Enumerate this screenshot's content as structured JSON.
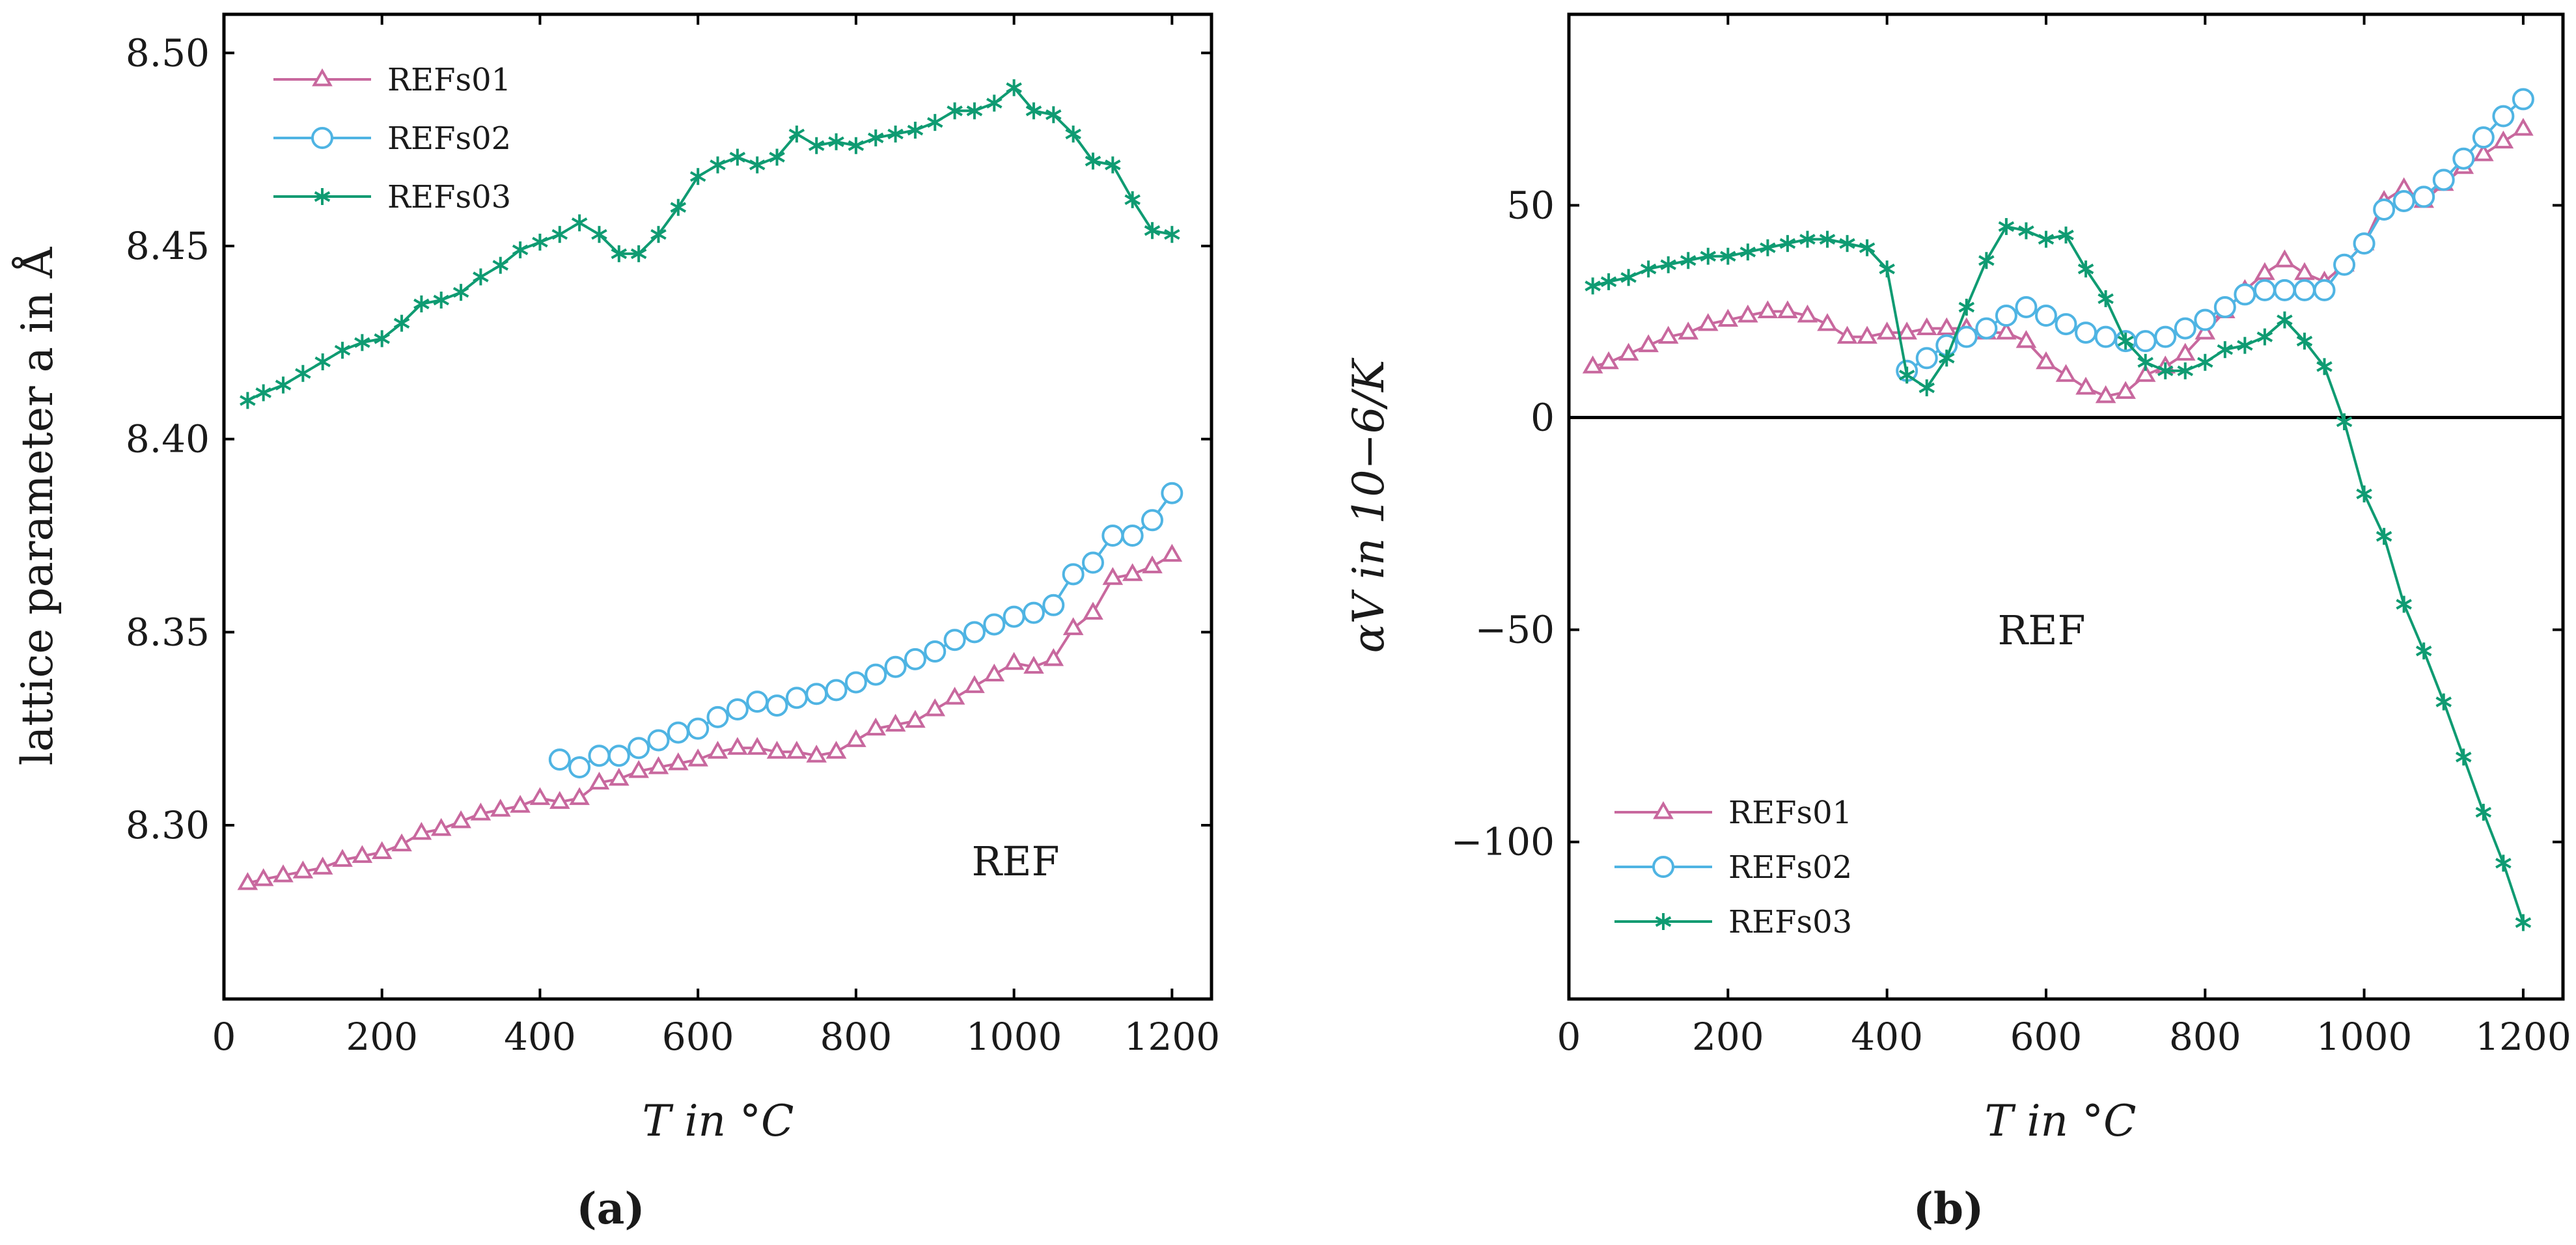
{
  "colors": {
    "REFs01": "#c8689e",
    "REFs02": "#4fb4e3",
    "REFs03": "#0f9b72"
  },
  "chart_data": [
    {
      "panel": "(a)",
      "type": "line",
      "xlabel": "T in °C",
      "ylabel": "lattice parameter a in Å",
      "xlim": [
        0,
        1250
      ],
      "ylim": [
        8.255,
        8.51
      ],
      "xticks": [
        0,
        200,
        400,
        600,
        800,
        1000,
        1200
      ],
      "yticks": [
        8.3,
        8.35,
        8.4,
        8.45,
        8.5
      ],
      "ytick_labels": [
        "8.30",
        "8.35",
        "8.40",
        "8.45",
        "8.50"
      ],
      "legend_position": "top-left",
      "annotation": "REF",
      "series": [
        {
          "name": "REFs01",
          "marker": "triangle",
          "x": [
            30,
            50,
            75,
            100,
            125,
            150,
            175,
            200,
            225,
            250,
            275,
            300,
            325,
            350,
            375,
            400,
            425,
            450,
            475,
            500,
            525,
            550,
            575,
            600,
            625,
            650,
            675,
            700,
            725,
            750,
            775,
            800,
            825,
            850,
            875,
            900,
            925,
            950,
            975,
            1000,
            1025,
            1050,
            1075,
            1100,
            1125,
            1150,
            1175,
            1200
          ],
          "y": [
            8.285,
            8.286,
            8.287,
            8.288,
            8.289,
            8.291,
            8.292,
            8.293,
            8.295,
            8.298,
            8.299,
            8.301,
            8.303,
            8.304,
            8.305,
            8.307,
            8.306,
            8.307,
            8.311,
            8.312,
            8.314,
            8.315,
            8.316,
            8.317,
            8.319,
            8.32,
            8.32,
            8.319,
            8.319,
            8.318,
            8.319,
            8.322,
            8.325,
            8.326,
            8.327,
            8.33,
            8.333,
            8.336,
            8.339,
            8.342,
            8.341,
            8.343,
            8.351,
            8.355,
            8.364,
            8.365,
            8.367,
            8.37
          ]
        },
        {
          "name": "REFs02",
          "marker": "circle",
          "x": [
            425,
            450,
            475,
            500,
            525,
            550,
            575,
            600,
            625,
            650,
            675,
            700,
            725,
            750,
            775,
            800,
            825,
            850,
            875,
            900,
            925,
            950,
            975,
            1000,
            1025,
            1050,
            1075,
            1100,
            1125,
            1150,
            1175,
            1200
          ],
          "y": [
            8.317,
            8.315,
            8.318,
            8.318,
            8.32,
            8.322,
            8.324,
            8.325,
            8.328,
            8.33,
            8.332,
            8.331,
            8.333,
            8.334,
            8.335,
            8.337,
            8.339,
            8.341,
            8.343,
            8.345,
            8.348,
            8.35,
            8.352,
            8.354,
            8.355,
            8.357,
            8.365,
            8.368,
            8.375,
            8.375,
            8.379,
            8.386
          ]
        },
        {
          "name": "REFs03",
          "marker": "star",
          "x": [
            30,
            50,
            75,
            100,
            125,
            150,
            175,
            200,
            225,
            250,
            275,
            300,
            325,
            350,
            375,
            400,
            425,
            450,
            475,
            500,
            525,
            550,
            575,
            600,
            625,
            650,
            675,
            700,
            725,
            750,
            775,
            800,
            825,
            850,
            875,
            900,
            925,
            950,
            975,
            1000,
            1025,
            1050,
            1075,
            1100,
            1125,
            1150,
            1175,
            1200
          ],
          "y": [
            8.41,
            8.412,
            8.414,
            8.417,
            8.42,
            8.423,
            8.425,
            8.426,
            8.43,
            8.435,
            8.436,
            8.438,
            8.442,
            8.445,
            8.449,
            8.451,
            8.453,
            8.456,
            8.453,
            8.448,
            8.448,
            8.453,
            8.46,
            8.468,
            8.471,
            8.473,
            8.471,
            8.473,
            8.479,
            8.476,
            8.477,
            8.476,
            8.478,
            8.479,
            8.48,
            8.482,
            8.485,
            8.485,
            8.487,
            8.491,
            8.485,
            8.484,
            8.479,
            8.472,
            8.471,
            8.462,
            8.454,
            8.453
          ]
        }
      ]
    },
    {
      "panel": "(b)",
      "type": "line",
      "xlabel": "T in °C",
      "ylabel": "αV in 10−6/K",
      "xlim": [
        0,
        1250
      ],
      "ylim": [
        -137,
        95
      ],
      "xticks": [
        0,
        200,
        400,
        600,
        800,
        1000,
        1200
      ],
      "yticks": [
        -100,
        -50,
        0,
        50
      ],
      "ytick_labels": [
        "−100",
        "−50",
        "0",
        "50"
      ],
      "zero_line": true,
      "legend_position": "bottom-left",
      "annotation": "REF",
      "series": [
        {
          "name": "REFs01",
          "marker": "triangle",
          "x": [
            30,
            50,
            75,
            100,
            125,
            150,
            175,
            200,
            225,
            250,
            275,
            300,
            325,
            350,
            375,
            400,
            425,
            450,
            475,
            500,
            525,
            550,
            575,
            600,
            625,
            650,
            675,
            700,
            725,
            750,
            775,
            800,
            825,
            850,
            875,
            900,
            925,
            950,
            975,
            1000,
            1025,
            1050,
            1075,
            1100,
            1125,
            1150,
            1175,
            1200
          ],
          "y": [
            12,
            13,
            15,
            17,
            19,
            20,
            22,
            23,
            24,
            25,
            25,
            24,
            22,
            19,
            19,
            20,
            20,
            21,
            21,
            21,
            20,
            20,
            18,
            13,
            10,
            7,
            5,
            6,
            10,
            12,
            15,
            20,
            25,
            30,
            34,
            37,
            34,
            32,
            36,
            41,
            51,
            54,
            51,
            55,
            59,
            62,
            65,
            68
          ]
        },
        {
          "name": "REFs02",
          "marker": "circle",
          "x": [
            425,
            450,
            475,
            500,
            525,
            550,
            575,
            600,
            625,
            650,
            675,
            700,
            725,
            750,
            775,
            800,
            825,
            850,
            875,
            900,
            925,
            950,
            975,
            1000,
            1025,
            1050,
            1075,
            1100,
            1125,
            1150,
            1175,
            1200
          ],
          "y": [
            11,
            14,
            17,
            19,
            21,
            24,
            26,
            24,
            22,
            20,
            19,
            18,
            18,
            19,
            21,
            23,
            26,
            29,
            30,
            30,
            30,
            30,
            36,
            41,
            49,
            51,
            52,
            56,
            61,
            66,
            71,
            75
          ]
        },
        {
          "name": "REFs03",
          "marker": "star",
          "x": [
            30,
            50,
            75,
            100,
            125,
            150,
            175,
            200,
            225,
            250,
            275,
            300,
            325,
            350,
            375,
            400,
            425,
            450,
            475,
            500,
            525,
            550,
            575,
            600,
            625,
            650,
            675,
            700,
            725,
            750,
            775,
            800,
            825,
            850,
            875,
            900,
            925,
            950,
            975,
            1000,
            1025,
            1050,
            1075,
            1100,
            1125,
            1150,
            1175,
            1200
          ],
          "y": [
            31,
            32,
            33,
            35,
            36,
            37,
            38,
            38,
            39,
            40,
            41,
            42,
            42,
            41,
            40,
            35,
            10,
            7,
            14,
            26,
            37,
            45,
            44,
            42,
            43,
            35,
            28,
            18,
            13,
            11,
            11,
            13,
            16,
            17,
            19,
            23,
            18,
            12,
            -1,
            -18,
            -28,
            -44,
            -55,
            -67,
            -80,
            -93,
            -105,
            -119
          ]
        }
      ]
    }
  ]
}
